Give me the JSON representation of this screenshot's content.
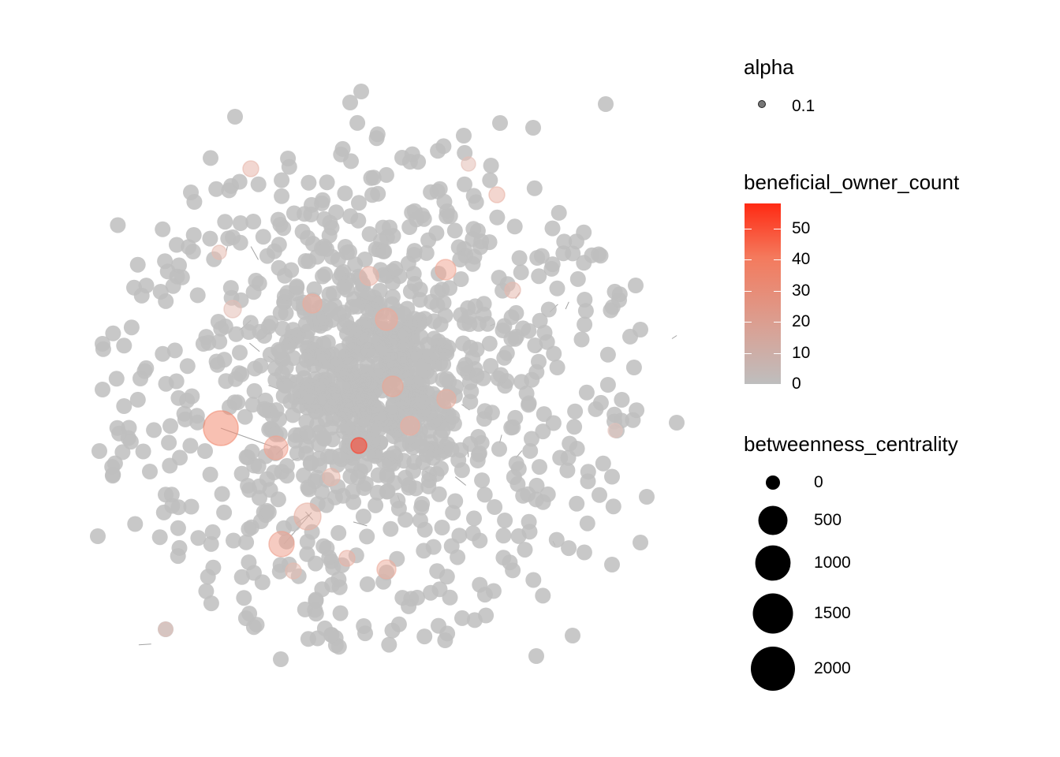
{
  "legends": {
    "alpha": {
      "title": "alpha",
      "items": [
        {
          "label": "0.1",
          "value": 0.1
        }
      ]
    },
    "color": {
      "title": "beneficial_owner_count",
      "ticks": [
        0,
        10,
        20,
        30,
        40,
        50
      ],
      "tick_labels": [
        "0",
        "10",
        "20",
        "30",
        "40",
        "50"
      ],
      "range": [
        0,
        58
      ],
      "low_color": "#bebebe",
      "high_color": "#ff2a13"
    },
    "size": {
      "title": "betweenness_centrality",
      "values": [
        0,
        500,
        1000,
        1500,
        2000
      ],
      "labels": [
        "0",
        "500",
        "1000",
        "1500",
        "2000"
      ]
    }
  },
  "chart_data": {
    "type": "network",
    "layout": "force-directed",
    "node_count_approx": 1000,
    "node_default_color": "#bebebe",
    "node_opacity": 0.1,
    "edge_color": "#555555",
    "grid": false,
    "axes": false,
    "legend_position": "right"
  }
}
